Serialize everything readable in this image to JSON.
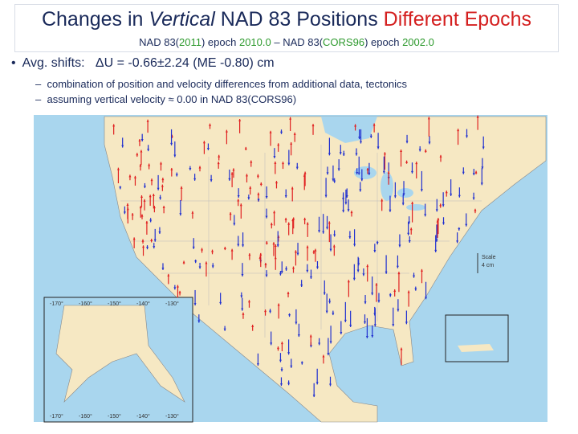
{
  "title": {
    "parts": [
      "Changes in ",
      "Vertical",
      " NAD 83 Positions ",
      "Different Epochs"
    ]
  },
  "subtitle": {
    "parts": [
      "NAD 83(",
      "2011",
      ") epoch ",
      "2010.0",
      " – NAD 83(",
      "CORS96",
      ") epoch ",
      "2002.0"
    ]
  },
  "bullet": {
    "label": "Avg. shifts:",
    "text": "ΔU = -0.66±2.24 (ME -0.80) cm",
    "subitems": [
      "combination of position and velocity differences from additional data, tectonics",
      "assuming vertical velocity ≈ 0.00 in NAD 83(CORS96)"
    ]
  },
  "map": {
    "scale_label": "Scale",
    "scale_value": "4 cm",
    "inset_labels": [
      "-170°",
      "-160°",
      "-150°",
      "-140°",
      "-130°"
    ]
  }
}
